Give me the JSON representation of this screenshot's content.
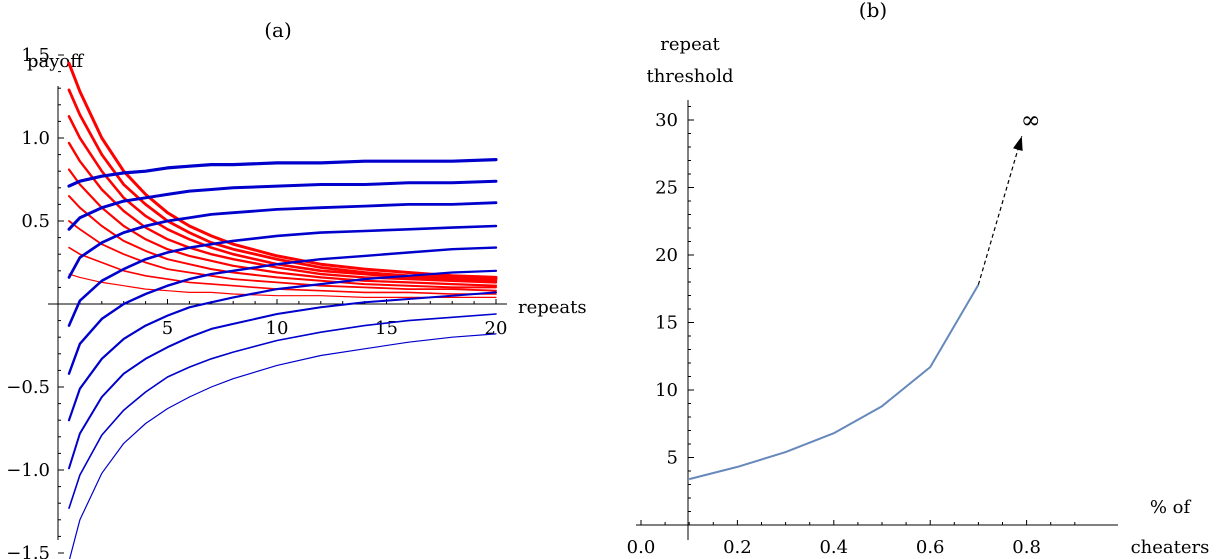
{
  "chart_data": [
    {
      "type": "line",
      "title": "(a)",
      "xlabel": "repeats",
      "ylabel": "payoff",
      "xlim": [
        0,
        20
      ],
      "ylim": [
        -1.6,
        1.6
      ],
      "xticks": [
        5,
        10,
        15,
        20
      ],
      "yticks": [
        -1.5,
        -1.0,
        -0.5,
        0.5,
        1.0,
        1.5
      ],
      "xtick_labels": [
        "5",
        "10",
        "15",
        "20"
      ],
      "ytick_labels": [
        "−1.5",
        "−1.0",
        "−0.5",
        "0.5",
        "1.0",
        "1.5"
      ],
      "grid": false,
      "colors": {
        "cheater": "#ff0000",
        "cooperator": "#0000cc"
      },
      "x": [
        0.5,
        1,
        2,
        3,
        4,
        5,
        6,
        7,
        8,
        10,
        12,
        14,
        16,
        18,
        20
      ],
      "series": [
        {
          "group": "cheater",
          "weight": 3.0,
          "values": [
            1.45,
            1.28,
            1.0,
            0.8,
            0.66,
            0.55,
            0.47,
            0.41,
            0.36,
            0.29,
            0.24,
            0.21,
            0.19,
            0.17,
            0.16
          ]
        },
        {
          "group": "cheater",
          "weight": 2.8,
          "values": [
            1.29,
            1.14,
            0.9,
            0.72,
            0.6,
            0.5,
            0.43,
            0.37,
            0.33,
            0.27,
            0.22,
            0.19,
            0.17,
            0.16,
            0.15
          ]
        },
        {
          "group": "cheater",
          "weight": 2.6,
          "values": [
            1.13,
            1.0,
            0.8,
            0.64,
            0.53,
            0.45,
            0.39,
            0.34,
            0.3,
            0.24,
            0.2,
            0.18,
            0.16,
            0.15,
            0.14
          ]
        },
        {
          "group": "cheater",
          "weight": 2.4,
          "values": [
            0.97,
            0.86,
            0.69,
            0.56,
            0.46,
            0.39,
            0.34,
            0.3,
            0.27,
            0.22,
            0.18,
            0.16,
            0.15,
            0.14,
            0.13
          ]
        },
        {
          "group": "cheater",
          "weight": 2.2,
          "values": [
            0.81,
            0.72,
            0.58,
            0.47,
            0.39,
            0.33,
            0.29,
            0.26,
            0.23,
            0.19,
            0.16,
            0.14,
            0.13,
            0.12,
            0.11
          ]
        },
        {
          "group": "cheater",
          "weight": 2.0,
          "values": [
            0.65,
            0.58,
            0.47,
            0.38,
            0.32,
            0.27,
            0.24,
            0.21,
            0.19,
            0.16,
            0.14,
            0.12,
            0.11,
            0.1,
            0.1
          ]
        },
        {
          "group": "cheater",
          "weight": 1.8,
          "values": [
            0.5,
            0.45,
            0.36,
            0.3,
            0.25,
            0.21,
            0.19,
            0.17,
            0.15,
            0.13,
            0.11,
            0.1,
            0.09,
            0.09,
            0.08
          ]
        },
        {
          "group": "cheater",
          "weight": 1.6,
          "values": [
            0.34,
            0.3,
            0.25,
            0.2,
            0.17,
            0.15,
            0.13,
            0.12,
            0.11,
            0.09,
            0.08,
            0.07,
            0.07,
            0.06,
            0.06
          ]
        },
        {
          "group": "cheater",
          "weight": 1.2,
          "values": [
            0.18,
            0.16,
            0.13,
            0.11,
            0.09,
            0.08,
            0.07,
            0.07,
            0.06,
            0.05,
            0.05,
            0.04,
            0.04,
            0.04,
            0.04
          ]
        },
        {
          "group": "cooperator",
          "weight": 3.2,
          "values": [
            0.71,
            0.74,
            0.77,
            0.79,
            0.8,
            0.82,
            0.83,
            0.84,
            0.84,
            0.85,
            0.85,
            0.86,
            0.86,
            0.86,
            0.87
          ]
        },
        {
          "group": "cooperator",
          "weight": 3.0,
          "values": [
            0.45,
            0.52,
            0.58,
            0.62,
            0.64,
            0.66,
            0.68,
            0.69,
            0.7,
            0.71,
            0.72,
            0.72,
            0.73,
            0.73,
            0.74
          ]
        },
        {
          "group": "cooperator",
          "weight": 2.8,
          "values": [
            0.16,
            0.28,
            0.37,
            0.43,
            0.47,
            0.5,
            0.52,
            0.54,
            0.55,
            0.57,
            0.58,
            0.59,
            0.6,
            0.6,
            0.61
          ]
        },
        {
          "group": "cooperator",
          "weight": 2.6,
          "values": [
            -0.13,
            0.02,
            0.14,
            0.21,
            0.27,
            0.31,
            0.34,
            0.36,
            0.38,
            0.41,
            0.43,
            0.44,
            0.45,
            0.46,
            0.47
          ]
        },
        {
          "group": "cooperator",
          "weight": 2.4,
          "values": [
            -0.42,
            -0.24,
            -0.09,
            0.0,
            0.06,
            0.11,
            0.15,
            0.18,
            0.2,
            0.24,
            0.27,
            0.29,
            0.31,
            0.33,
            0.34
          ]
        },
        {
          "group": "cooperator",
          "weight": 2.2,
          "values": [
            -0.7,
            -0.51,
            -0.33,
            -0.21,
            -0.13,
            -0.07,
            -0.02,
            0.01,
            0.04,
            0.09,
            0.12,
            0.15,
            0.17,
            0.19,
            0.2
          ]
        },
        {
          "group": "cooperator",
          "weight": 2.0,
          "values": [
            -0.99,
            -0.78,
            -0.56,
            -0.42,
            -0.33,
            -0.26,
            -0.2,
            -0.15,
            -0.12,
            -0.06,
            -0.02,
            0.01,
            0.03,
            0.05,
            0.07
          ]
        },
        {
          "group": "cooperator",
          "weight": 1.6,
          "values": [
            -1.23,
            -1.03,
            -0.79,
            -0.64,
            -0.53,
            -0.44,
            -0.38,
            -0.33,
            -0.29,
            -0.22,
            -0.17,
            -0.13,
            -0.1,
            -0.08,
            -0.06
          ]
        },
        {
          "group": "cooperator",
          "weight": 1.2,
          "values": [
            -1.55,
            -1.3,
            -1.02,
            -0.84,
            -0.72,
            -0.63,
            -0.56,
            -0.5,
            -0.45,
            -0.37,
            -0.31,
            -0.27,
            -0.23,
            -0.2,
            -0.18
          ]
        }
      ]
    },
    {
      "type": "line",
      "title": "(b)",
      "xlabel": [
        "% of",
        "cheaters"
      ],
      "ylabel": [
        "repeat",
        "threshold"
      ],
      "xlim": [
        0.0,
        0.95
      ],
      "ylim": [
        0,
        31.5
      ],
      "xticks": [
        0.0,
        0.2,
        0.4,
        0.6,
        0.8
      ],
      "yticks": [
        5,
        10,
        15,
        20,
        25,
        30
      ],
      "xtick_labels": [
        "0.0",
        "0.2",
        "0.4",
        "0.6",
        "0.8"
      ],
      "ytick_labels": [
        "5",
        "10",
        "15",
        "20",
        "25",
        "30"
      ],
      "grid": false,
      "colors": {
        "line": "#6688bb",
        "arrow": "#000000"
      },
      "series": [
        {
          "x": [
            0.1,
            0.2,
            0.3,
            0.4,
            0.5,
            0.6,
            0.7
          ],
          "y": [
            3.4,
            4.3,
            5.4,
            6.8,
            8.8,
            11.7,
            17.8
          ]
        }
      ],
      "arrow": {
        "from": [
          0.7,
          17.8
        ],
        "to": [
          0.79,
          28.8
        ],
        "label": "∞"
      }
    }
  ]
}
